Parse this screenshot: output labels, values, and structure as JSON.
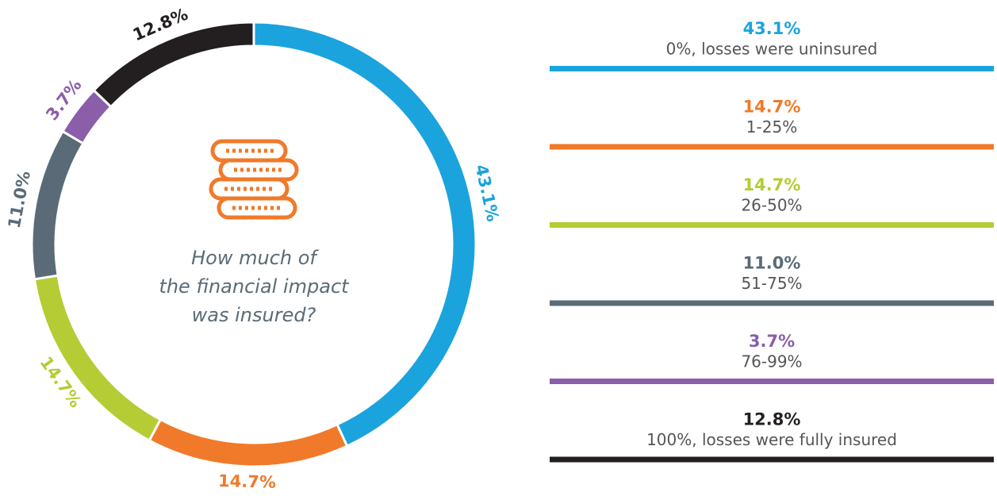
{
  "chart_data": {
    "type": "donut",
    "title_lines": [
      "How much of",
      "the financial impact",
      "was insured?"
    ],
    "categories": [
      "0%, losses were uninsured",
      "1-25%",
      "26-50%",
      "51-75%",
      "76-99%",
      "100%, losses were fully insured"
    ],
    "values": [
      43.1,
      14.7,
      14.7,
      11.0,
      3.7,
      12.8
    ],
    "value_labels": [
      "43.1%",
      "14.7%",
      "14.7%",
      "11.0%",
      "3.7%",
      "12.8%"
    ],
    "colors": [
      "#1ba3dd",
      "#f07a2a",
      "#b5cc34",
      "#5a6b77",
      "#8a5ea8",
      "#231f20"
    ]
  }
}
